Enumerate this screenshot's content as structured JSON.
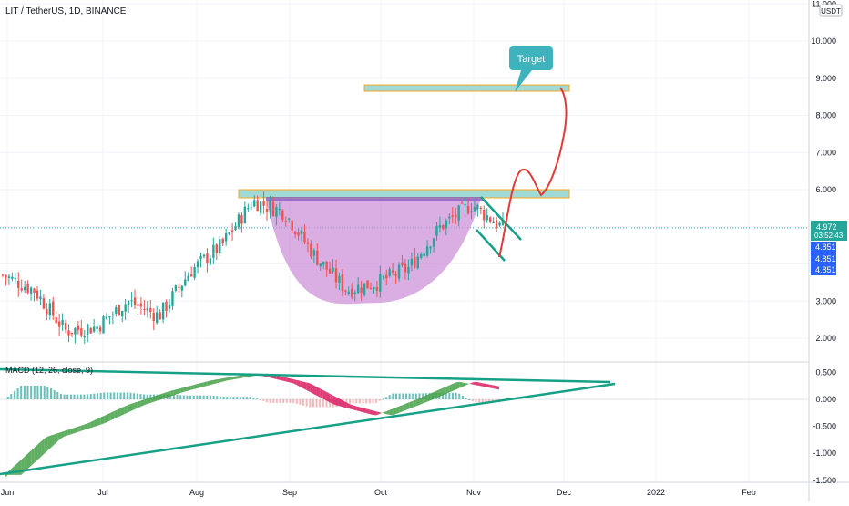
{
  "header": {
    "symbol_line": "LIT / TetherUS, 1D, BINANCE",
    "currency_badge": "USDT"
  },
  "price_panel": {
    "last_price": "4.972",
    "countdown": "03:52:43",
    "marker_1": "4.851",
    "marker_2": "4.851",
    "marker_3": "4.851",
    "annotation": "Target"
  },
  "macd_panel": {
    "title": "MACD (12, 26, close, 9)"
  },
  "colors": {
    "up": "#26a69a",
    "down": "#ef5350",
    "cup_fill": "#ce93d8",
    "zone_fill": "#8fd3cf",
    "zone_border": "#f5a623",
    "trend_line": "#16a085",
    "projection": "#e53935",
    "callout": "#3fb3bd",
    "price_badge": "#26a69a",
    "marker_badge": "#2962ff"
  },
  "chart_data": [
    {
      "type": "candlestick",
      "title": "LIT / TetherUS, 1D, BINANCE",
      "x_ticks": [
        "Jun",
        "Jul",
        "Aug",
        "Sep",
        "Oct",
        "Nov",
        "Dec",
        "2022",
        "Feb"
      ],
      "y_ticks": [
        "2.000",
        "3.000",
        "4.000",
        "5.000",
        "6.000",
        "7.000",
        "8.000",
        "9.000",
        "10.000",
        "11.000"
      ],
      "ylim": [
        1.6,
        11.0
      ],
      "last_price": 4.972,
      "resistance_zone": [
        5.78,
        6.0
      ],
      "target_zone": [
        8.65,
        8.82
      ],
      "cup_bottom": 2.95,
      "approx_closes": [
        {
          "date": "Jun",
          "value": 3.7
        },
        {
          "date": "mid-Jun",
          "value": 3.3
        },
        {
          "date": "late-Jun",
          "value": 2.2
        },
        {
          "date": "Jul",
          "value": 2.3
        },
        {
          "date": "mid-Jul",
          "value": 3.0
        },
        {
          "date": "late-Jul",
          "value": 2.6
        },
        {
          "date": "Aug",
          "value": 3.8
        },
        {
          "date": "mid-Aug",
          "value": 4.5
        },
        {
          "date": "late-Aug",
          "value": 5.7
        },
        {
          "date": "Sep",
          "value": 5.4
        },
        {
          "date": "mid-Sep",
          "value": 4.2
        },
        {
          "date": "late-Sep",
          "value": 3.3
        },
        {
          "date": "Oct",
          "value": 3.5
        },
        {
          "date": "mid-Oct",
          "value": 3.9
        },
        {
          "date": "late-Oct",
          "value": 5.0
        },
        {
          "date": "Nov",
          "value": 5.6
        },
        {
          "date": "mid-Nov",
          "value": 4.97
        }
      ]
    },
    {
      "type": "area",
      "title": "MACD (12, 26, close, 9)",
      "y_ticks": [
        "0.500",
        "0.000",
        "-0.500",
        "-1.000",
        "-1.500"
      ],
      "ylim": [
        -1.62,
        0.62
      ],
      "approx_macd": [
        {
          "date": "Jun",
          "value": -1.4
        },
        {
          "date": "mid-Jun",
          "value": -0.7
        },
        {
          "date": "Jul",
          "value": -0.45
        },
        {
          "date": "mid-Jul",
          "value": -0.1
        },
        {
          "date": "Aug",
          "value": 0.15
        },
        {
          "date": "mid-Aug",
          "value": 0.35
        },
        {
          "date": "late-Aug",
          "value": 0.48
        },
        {
          "date": "Sep",
          "value": 0.3
        },
        {
          "date": "mid-Sep",
          "value": -0.1
        },
        {
          "date": "Oct",
          "value": -0.3
        },
        {
          "date": "mid-Oct",
          "value": 0.0
        },
        {
          "date": "Nov",
          "value": 0.33
        },
        {
          "date": "mid-Nov",
          "value": 0.18
        }
      ]
    }
  ]
}
